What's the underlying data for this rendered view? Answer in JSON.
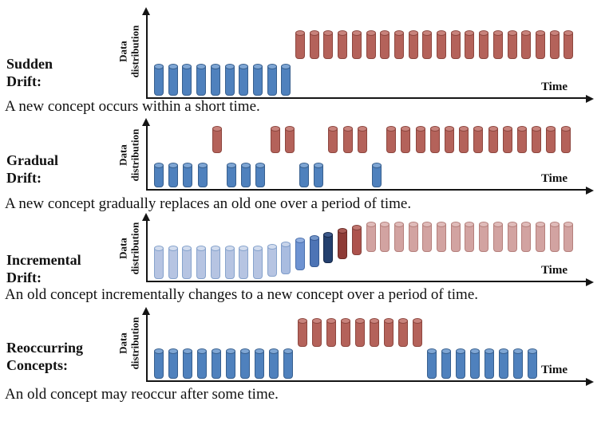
{
  "figure": {
    "description_visible_text_only": true
  },
  "palette": {
    "blue": {
      "body": "#4f81bd",
      "border": "#38608f",
      "top": "#7fa6d4"
    },
    "red": {
      "body": "#b4625a",
      "border": "#8e473f",
      "top": "#c8837c"
    },
    "pale_blue": {
      "body": "#b6c4e2",
      "border": "#87a3cc",
      "top": "#d2dcee"
    },
    "pale_blue2": {
      "body": "#a9bce0",
      "border": "#7f9cc9",
      "top": "#c8d4ea"
    },
    "medium_blue": {
      "body": "#6e93d2",
      "border": "#4c71ae",
      "top": "#93b0e0"
    },
    "steel_blue": {
      "body": "#4d74b5",
      "border": "#365a94",
      "top": "#7496c9"
    },
    "navy": {
      "body": "#24406e",
      "border": "#16294a",
      "top": "#3d5a8c"
    },
    "dark_red": {
      "body": "#8e3b36",
      "border": "#6b2a26",
      "top": "#a85a54"
    },
    "medium_red": {
      "body": "#ad534d",
      "border": "#84423c",
      "top": "#c07670"
    },
    "pink": {
      "body": "#d2a3a1",
      "border": "#b5807c",
      "top": "#e0bcba"
    }
  },
  "rows": [
    {
      "label_line1": "Sudden",
      "label_line2": "Drift:",
      "y_axis_line1": "Data",
      "y_axis_line2": "distribution",
      "x_axis_label": "Time",
      "caption": "A new concept occurs within a short time."
    },
    {
      "label_line1": "Gradual",
      "label_line2": "Drift:",
      "y_axis_line1": "Data",
      "y_axis_line2": "distribution",
      "x_axis_label": "Time",
      "caption": "A new concept gradually replaces an old one over a period of time."
    },
    {
      "label_line1": "Incremental",
      "label_line2": "Drift:",
      "y_axis_line1": "Data",
      "y_axis_line2": "distribution",
      "x_axis_label": "Time",
      "caption": "An old concept incrementally changes to a new concept over a period of time."
    },
    {
      "label_line1": "Reoccurring",
      "label_line2": "Concepts:",
      "y_axis_line1": "Data",
      "y_axis_line2": "distribution",
      "x_axis_label": "Time",
      "caption": "An old concept may reoccur after some time."
    }
  ],
  "chart_data": [
    {
      "type": "bar",
      "title": "Sudden Drift",
      "xlabel": "Time",
      "ylabel": "Data distribution",
      "concept_colors": {
        "old_concept": "#4f81bd",
        "new_concept": "#b4625a"
      },
      "sequence": [
        {
          "concept": "old",
          "color": "blue",
          "count": 10,
          "level": 0
        },
        {
          "concept": "new",
          "color": "red",
          "count": 20,
          "level": 1
        }
      ]
    },
    {
      "type": "bar",
      "title": "Gradual Drift",
      "xlabel": "Time",
      "ylabel": "Data distribution",
      "concept_colors": {
        "old_concept": "#4f81bd",
        "new_concept": "#b4625a"
      },
      "sequence": [
        {
          "concept": "old",
          "color": "blue",
          "count": 4,
          "level": 0
        },
        {
          "concept": "new",
          "color": "red",
          "count": 1,
          "level": 1
        },
        {
          "concept": "old",
          "color": "blue",
          "count": 3,
          "level": 0
        },
        {
          "concept": "new",
          "color": "red",
          "count": 2,
          "level": 1
        },
        {
          "concept": "old",
          "color": "blue",
          "count": 2,
          "level": 0
        },
        {
          "concept": "new",
          "color": "red",
          "count": 3,
          "level": 1
        },
        {
          "concept": "old",
          "color": "blue",
          "count": 1,
          "level": 0
        },
        {
          "concept": "new",
          "color": "red",
          "count": 13,
          "level": 1
        }
      ]
    },
    {
      "type": "bar",
      "title": "Incremental Drift",
      "xlabel": "Time",
      "ylabel": "Data distribution",
      "concept_colors": {
        "old_concept": "#b6c4e2",
        "new_concept": "#d2a3a1"
      },
      "sequence": [
        {
          "concept": "old",
          "color": "pale_blue",
          "count": 8,
          "level": 0
        },
        {
          "concept": "old",
          "color": "pale_blue",
          "count": 1,
          "level": 0.08
        },
        {
          "concept": "old",
          "color": "pale_blue2",
          "count": 1,
          "level": 0.18
        },
        {
          "concept": "old",
          "color": "medium_blue",
          "count": 1,
          "level": 0.32
        },
        {
          "concept": "old",
          "color": "steel_blue",
          "count": 1,
          "level": 0.45
        },
        {
          "concept": "old",
          "color": "navy",
          "count": 1,
          "level": 0.58
        },
        {
          "concept": "new",
          "color": "dark_red",
          "count": 1,
          "level": 0.73
        },
        {
          "concept": "new",
          "color": "medium_red",
          "count": 1,
          "level": 0.87
        },
        {
          "concept": "new",
          "color": "pink",
          "count": 15,
          "level": 1
        }
      ]
    },
    {
      "type": "bar",
      "title": "Reoccurring Concepts",
      "xlabel": "Time",
      "ylabel": "Data distribution",
      "concept_colors": {
        "old_concept": "#4f81bd",
        "new_concept": "#b4625a"
      },
      "sequence": [
        {
          "concept": "old",
          "color": "blue",
          "count": 10,
          "level": 0
        },
        {
          "concept": "new",
          "color": "red",
          "count": 9,
          "level": 1
        },
        {
          "concept": "old",
          "color": "blue",
          "count": 8,
          "level": 0
        }
      ]
    }
  ]
}
